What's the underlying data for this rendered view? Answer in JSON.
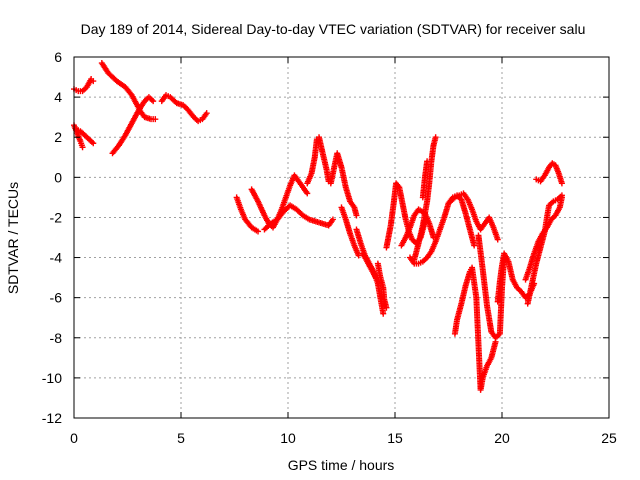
{
  "chart_data": {
    "type": "scatter",
    "title": "Day 189 of 2014, Sidereal Day-to-day VTEC variation (SDTVAR) for receiver salu",
    "xlabel": "GPS time / hours",
    "ylabel": "SDTVAR / TECUs",
    "xlim": [
      0,
      25
    ],
    "ylim": [
      -12,
      6
    ],
    "x_ticks": [
      0,
      5,
      10,
      15,
      20,
      25
    ],
    "y_ticks": [
      -12,
      -10,
      -8,
      -6,
      -4,
      -2,
      0,
      2,
      4,
      6
    ],
    "x_tick_labels": [
      "0",
      "5",
      "10",
      "15",
      "20",
      "25"
    ],
    "y_tick_labels": [
      "-12",
      "-10",
      "-8",
      "-6",
      "-4",
      "-2",
      "0",
      "2",
      "4",
      "6"
    ],
    "grid": true,
    "marker": "plus",
    "color": "#ff0000",
    "series": [
      {
        "points": [
          [
            0.0,
            4.4
          ],
          [
            0.2,
            4.3
          ],
          [
            0.4,
            4.3
          ],
          [
            0.6,
            4.5
          ],
          [
            0.8,
            4.9
          ],
          [
            0.9,
            4.8
          ]
        ]
      },
      {
        "points": [
          [
            0.0,
            2.6
          ],
          [
            0.15,
            2.2
          ],
          [
            0.3,
            1.8
          ],
          [
            0.4,
            1.5
          ]
        ]
      },
      {
        "points": [
          [
            0.1,
            2.4
          ],
          [
            0.3,
            2.3
          ],
          [
            0.5,
            2.1
          ],
          [
            0.7,
            1.9
          ],
          [
            0.9,
            1.7
          ]
        ]
      },
      {
        "points": [
          [
            1.3,
            5.7
          ],
          [
            1.6,
            5.2
          ],
          [
            2.0,
            4.8
          ],
          [
            2.4,
            4.5
          ],
          [
            2.7,
            4.1
          ],
          [
            2.9,
            3.7
          ],
          [
            3.1,
            3.3
          ],
          [
            3.3,
            3.0
          ],
          [
            3.6,
            2.9
          ],
          [
            3.8,
            2.9
          ]
        ]
      },
      {
        "points": [
          [
            1.8,
            1.2
          ],
          [
            2.1,
            1.6
          ],
          [
            2.4,
            2.1
          ],
          [
            2.7,
            2.7
          ],
          [
            3.0,
            3.3
          ],
          [
            3.3,
            3.8
          ],
          [
            3.5,
            4.0
          ],
          [
            3.7,
            3.8
          ]
        ]
      },
      {
        "points": [
          [
            4.1,
            3.8
          ],
          [
            4.3,
            4.1
          ],
          [
            4.5,
            4.0
          ],
          [
            4.8,
            3.7
          ],
          [
            5.1,
            3.6
          ],
          [
            5.3,
            3.4
          ],
          [
            5.6,
            3.0
          ],
          [
            5.8,
            2.8
          ],
          [
            6.0,
            2.9
          ],
          [
            6.2,
            3.2
          ]
        ]
      },
      {
        "points": [
          [
            7.6,
            -1.0
          ],
          [
            7.8,
            -1.6
          ],
          [
            8.0,
            -2.1
          ],
          [
            8.3,
            -2.5
          ],
          [
            8.6,
            -2.7
          ]
        ]
      },
      {
        "points": [
          [
            8.3,
            -0.6
          ],
          [
            8.6,
            -1.2
          ],
          [
            8.9,
            -1.9
          ],
          [
            9.1,
            -2.3
          ],
          [
            9.3,
            -2.5
          ],
          [
            9.5,
            -2.1
          ],
          [
            9.7,
            -1.6
          ],
          [
            9.9,
            -1.0
          ],
          [
            10.1,
            -0.4
          ],
          [
            10.3,
            0.1
          ],
          [
            10.5,
            -0.2
          ],
          [
            10.7,
            -0.5
          ],
          [
            10.9,
            -0.8
          ]
        ]
      },
      {
        "points": [
          [
            8.9,
            -2.6
          ],
          [
            9.2,
            -2.3
          ],
          [
            9.5,
            -2.1
          ],
          [
            9.8,
            -1.7
          ],
          [
            10.1,
            -1.4
          ],
          [
            10.4,
            -1.6
          ],
          [
            10.7,
            -1.9
          ],
          [
            11.0,
            -2.1
          ],
          [
            11.3,
            -2.2
          ],
          [
            11.6,
            -2.3
          ],
          [
            11.9,
            -2.4
          ],
          [
            12.1,
            -2.1
          ]
        ]
      },
      {
        "points": [
          [
            10.9,
            -0.3
          ],
          [
            11.1,
            0.2
          ],
          [
            11.25,
            1.0
          ],
          [
            11.35,
            1.9
          ],
          [
            11.45,
            2.0
          ],
          [
            11.6,
            1.3
          ],
          [
            11.8,
            0.4
          ],
          [
            11.9,
            -0.2
          ],
          [
            12.0,
            -0.3
          ],
          [
            12.2,
            0.7
          ],
          [
            12.3,
            1.2
          ],
          [
            12.5,
            0.5
          ],
          [
            12.7,
            -0.5
          ],
          [
            12.9,
            -1.2
          ],
          [
            13.1,
            -1.5
          ],
          [
            13.2,
            -1.9
          ]
        ]
      },
      {
        "points": [
          [
            12.5,
            -1.5
          ],
          [
            12.7,
            -2.1
          ],
          [
            12.9,
            -2.8
          ],
          [
            13.1,
            -3.4
          ],
          [
            13.3,
            -3.9
          ]
        ]
      },
      {
        "points": [
          [
            13.5,
            -3.8
          ],
          [
            13.7,
            -4.2
          ],
          [
            13.9,
            -4.6
          ],
          [
            14.1,
            -5.0
          ]
        ]
      },
      {
        "points": [
          [
            13.2,
            -2.6
          ],
          [
            13.4,
            -3.3
          ],
          [
            13.6,
            -3.9
          ],
          [
            13.8,
            -4.3
          ],
          [
            14.0,
            -4.7
          ],
          [
            14.2,
            -5.3
          ],
          [
            14.35,
            -6.2
          ],
          [
            14.45,
            -6.8
          ]
        ]
      },
      {
        "points": [
          [
            14.2,
            -4.3
          ],
          [
            14.3,
            -4.9
          ],
          [
            14.45,
            -5.5
          ],
          [
            14.5,
            -6.1
          ],
          [
            14.6,
            -6.5
          ]
        ]
      },
      {
        "points": [
          [
            14.6,
            -3.5
          ],
          [
            14.8,
            -2.4
          ],
          [
            14.95,
            -1.2
          ],
          [
            15.05,
            -0.3
          ],
          [
            15.2,
            -0.5
          ],
          [
            15.35,
            -1.3
          ],
          [
            15.5,
            -2.1
          ],
          [
            15.65,
            -2.7
          ],
          [
            15.8,
            -3.1
          ],
          [
            16.0,
            -3.3
          ],
          [
            16.2,
            -3.0
          ],
          [
            16.4,
            -2.2
          ]
        ]
      },
      {
        "points": [
          [
            15.3,
            -3.4
          ],
          [
            15.5,
            -3.0
          ],
          [
            15.7,
            -2.5
          ],
          [
            15.9,
            -1.9
          ],
          [
            16.1,
            -1.6
          ],
          [
            16.4,
            -1.8
          ],
          [
            16.6,
            -2.3
          ],
          [
            16.8,
            -3.0
          ]
        ]
      },
      {
        "points": [
          [
            15.9,
            -4.1
          ],
          [
            16.1,
            -3.3
          ],
          [
            16.3,
            -2.4
          ],
          [
            16.5,
            -1.2
          ],
          [
            16.6,
            -0.3
          ],
          [
            16.7,
            0.8
          ],
          [
            16.8,
            1.6
          ],
          [
            16.9,
            2.0
          ]
        ]
      },
      {
        "points": [
          [
            16.3,
            -1.0
          ],
          [
            16.4,
            0.0
          ],
          [
            16.5,
            0.8
          ]
        ]
      },
      {
        "points": [
          [
            15.7,
            -4.0
          ],
          [
            15.9,
            -4.3
          ],
          [
            16.1,
            -4.3
          ],
          [
            16.3,
            -4.2
          ],
          [
            16.5,
            -4.0
          ],
          [
            16.7,
            -3.7
          ],
          [
            16.9,
            -3.2
          ],
          [
            17.1,
            -2.6
          ],
          [
            17.3,
            -2.0
          ],
          [
            17.5,
            -1.3
          ],
          [
            17.7,
            -1.0
          ],
          [
            17.9,
            -0.9
          ],
          [
            18.1,
            -1.1
          ],
          [
            18.3,
            -1.8
          ],
          [
            18.5,
            -2.6
          ],
          [
            18.7,
            -3.4
          ]
        ]
      },
      {
        "points": [
          [
            17.5,
            -1.3
          ],
          [
            17.8,
            -1.0
          ],
          [
            18.0,
            -0.9
          ],
          [
            18.2,
            -0.8
          ],
          [
            18.4,
            -1.1
          ],
          [
            18.6,
            -1.6
          ],
          [
            18.8,
            -2.2
          ],
          [
            19.0,
            -2.6
          ],
          [
            19.2,
            -2.3
          ],
          [
            19.4,
            -2.0
          ],
          [
            19.6,
            -2.5
          ],
          [
            19.8,
            -3.1
          ]
        ]
      },
      {
        "points": [
          [
            17.8,
            -7.8
          ],
          [
            17.9,
            -7.1
          ],
          [
            18.1,
            -6.3
          ],
          [
            18.3,
            -5.4
          ],
          [
            18.5,
            -4.7
          ],
          [
            18.6,
            -4.5
          ],
          [
            18.8,
            -6.0
          ],
          [
            18.9,
            -8.3
          ],
          [
            19.0,
            -10.6
          ],
          [
            19.1,
            -10.0
          ],
          [
            19.3,
            -9.4
          ],
          [
            19.5,
            -9.0
          ],
          [
            19.7,
            -8.2
          ]
        ]
      },
      {
        "points": [
          [
            18.9,
            -2.9
          ],
          [
            19.1,
            -4.6
          ],
          [
            19.3,
            -6.4
          ],
          [
            19.5,
            -7.7
          ],
          [
            19.7,
            -8.0
          ],
          [
            19.9,
            -7.8
          ],
          [
            20.0,
            -5.5
          ],
          [
            20.1,
            -4.0
          ]
        ]
      },
      {
        "points": [
          [
            19.8,
            -6.2
          ],
          [
            19.9,
            -5.2
          ],
          [
            20.0,
            -4.4
          ],
          [
            20.1,
            -3.8
          ],
          [
            20.3,
            -4.2
          ],
          [
            20.5,
            -5.1
          ],
          [
            20.7,
            -5.5
          ],
          [
            20.9,
            -5.7
          ],
          [
            21.1,
            -6.0
          ],
          [
            21.3,
            -5.8
          ],
          [
            21.5,
            -5.3
          ]
        ]
      },
      {
        "points": [
          [
            21.1,
            -5.1
          ],
          [
            21.3,
            -4.5
          ],
          [
            21.5,
            -3.8
          ],
          [
            21.7,
            -3.2
          ],
          [
            21.9,
            -2.8
          ],
          [
            22.1,
            -2.5
          ],
          [
            22.3,
            -2.1
          ],
          [
            22.5,
            -1.9
          ],
          [
            22.7,
            -1.5
          ],
          [
            22.8,
            -1.0
          ]
        ]
      },
      {
        "points": [
          [
            21.2,
            -6.3
          ],
          [
            21.4,
            -5.3
          ],
          [
            21.6,
            -4.3
          ],
          [
            21.8,
            -3.5
          ],
          [
            22.0,
            -2.7
          ],
          [
            22.1,
            -2.0
          ],
          [
            22.2,
            -1.4
          ],
          [
            22.4,
            -1.2
          ],
          [
            22.6,
            -1.1
          ],
          [
            22.8,
            -0.9
          ]
        ]
      },
      {
        "points": [
          [
            21.6,
            -0.1
          ],
          [
            21.8,
            -0.2
          ],
          [
            22.0,
            0.1
          ],
          [
            22.2,
            0.5
          ],
          [
            22.35,
            0.7
          ],
          [
            22.5,
            0.6
          ],
          [
            22.65,
            0.2
          ],
          [
            22.8,
            -0.3
          ]
        ]
      }
    ]
  }
}
